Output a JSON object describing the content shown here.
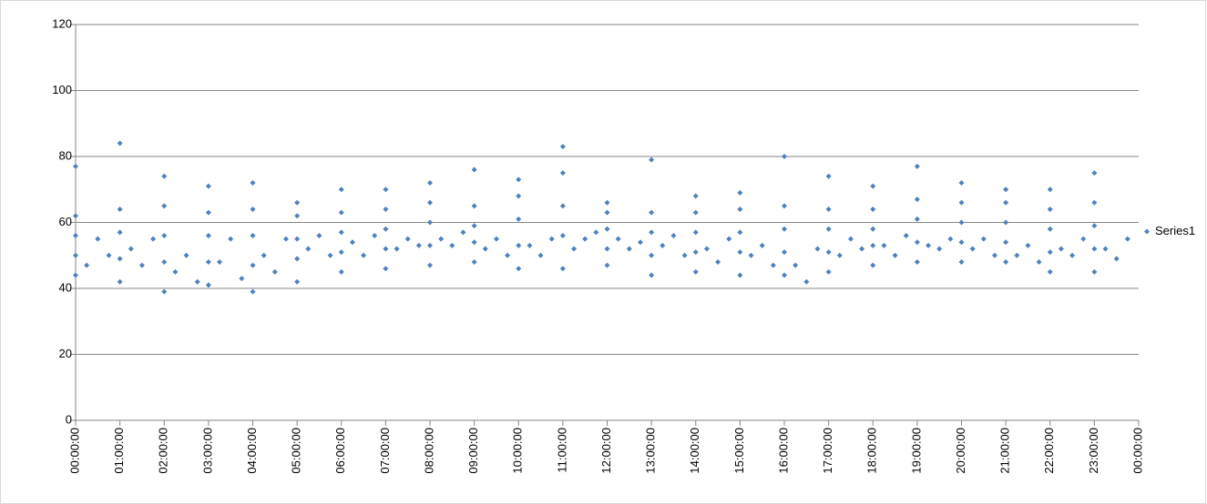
{
  "chart_data": {
    "type": "scatter",
    "x": [
      0,
      0,
      0,
      0,
      0,
      0.25,
      0.5,
      0.75,
      1,
      1,
      1,
      1,
      1,
      1.25,
      1.5,
      1.75,
      2,
      2,
      2,
      2,
      2,
      2.25,
      2.5,
      2.75,
      3,
      3,
      3,
      3,
      3,
      3.25,
      3.5,
      3.75,
      4,
      4,
      4,
      4,
      4,
      4.25,
      4.5,
      4.75,
      5,
      5,
      5,
      5,
      5,
      5.25,
      5.5,
      5.75,
      6,
      6,
      6,
      6,
      6,
      6.25,
      6.5,
      6.75,
      7,
      7,
      7,
      7,
      7,
      7.25,
      7.5,
      7.75,
      8,
      8,
      8,
      8,
      8,
      8.25,
      8.5,
      8.75,
      9,
      9,
      9,
      9,
      9,
      9.25,
      9.5,
      9.75,
      10,
      10,
      10,
      10,
      10,
      10.25,
      10.5,
      10.75,
      11,
      11,
      11,
      11,
      11,
      11.25,
      11.5,
      11.75,
      12,
      12,
      12,
      12,
      12,
      12.25,
      12.5,
      12.75,
      13,
      13,
      13,
      13,
      13,
      13.25,
      13.5,
      13.75,
      14,
      14,
      14,
      14,
      14,
      14.25,
      14.5,
      14.75,
      15,
      15,
      15,
      15,
      15,
      15.25,
      15.5,
      15.75,
      16,
      16,
      16,
      16,
      16,
      16.25,
      16.5,
      16.75,
      17,
      17,
      17,
      17,
      17,
      17.25,
      17.5,
      17.75,
      18,
      18,
      18,
      18,
      18,
      18.25,
      18.5,
      18.75,
      19,
      19,
      19,
      19,
      19,
      19.25,
      19.5,
      19.75,
      20,
      20,
      20,
      20,
      20,
      20.25,
      20.5,
      20.75,
      21,
      21,
      21,
      21,
      21,
      21.25,
      21.5,
      21.75,
      22,
      22,
      22,
      22,
      22,
      22.25,
      22.5,
      22.75,
      23,
      23,
      23,
      23,
      23,
      23.25,
      23.5,
      23.75
    ],
    "series": [
      {
        "name": "Series1",
        "color": "#4f81bd",
        "values": [
          44,
          50,
          56,
          62,
          77,
          47,
          55,
          50,
          42,
          49,
          57,
          64,
          84,
          52,
          47,
          55,
          39,
          48,
          56,
          65,
          74,
          45,
          50,
          42,
          41,
          48,
          56,
          63,
          71,
          48,
          55,
          43,
          39,
          47,
          56,
          64,
          72,
          50,
          45,
          55,
          42,
          49,
          55,
          62,
          66,
          52,
          56,
          50,
          45,
          51,
          57,
          63,
          70,
          54,
          50,
          56,
          46,
          52,
          58,
          64,
          70,
          52,
          55,
          53,
          47,
          53,
          60,
          66,
          72,
          55,
          53,
          57,
          48,
          54,
          59,
          65,
          76,
          52,
          55,
          50,
          46,
          53,
          61,
          68,
          73,
          53,
          50,
          55,
          46,
          56,
          65,
          75,
          83,
          52,
          55,
          57,
          47,
          52,
          58,
          63,
          66,
          55,
          52,
          54,
          44,
          50,
          57,
          63,
          79,
          53,
          56,
          50,
          45,
          51,
          57,
          63,
          68,
          52,
          48,
          55,
          44,
          51,
          57,
          64,
          69,
          50,
          53,
          47,
          44,
          51,
          58,
          65,
          80,
          47,
          42,
          52,
          45,
          51,
          58,
          64,
          74,
          50,
          55,
          52,
          47,
          53,
          58,
          64,
          71,
          53,
          50,
          56,
          48,
          54,
          61,
          67,
          77,
          53,
          52,
          55,
          48,
          54,
          60,
          66,
          72,
          52,
          55,
          50,
          48,
          54,
          60,
          66,
          70,
          50,
          53,
          48,
          45,
          51,
          58,
          64,
          70,
          52,
          50,
          55,
          45,
          52,
          59,
          66,
          75,
          52,
          49,
          55
        ]
      }
    ],
    "xlim": [
      0,
      24
    ],
    "xticks": [
      {
        "value": 0,
        "label": "00:00:00"
      },
      {
        "value": 1,
        "label": "01:00:00"
      },
      {
        "value": 2,
        "label": "02:00:00"
      },
      {
        "value": 3,
        "label": "03:00:00"
      },
      {
        "value": 4,
        "label": "04:00:00"
      },
      {
        "value": 5,
        "label": "05:00:00"
      },
      {
        "value": 6,
        "label": "06:00:00"
      },
      {
        "value": 7,
        "label": "07:00:00"
      },
      {
        "value": 8,
        "label": "08:00:00"
      },
      {
        "value": 9,
        "label": "09:00:00"
      },
      {
        "value": 10,
        "label": "10:00:00"
      },
      {
        "value": 11,
        "label": "11:00:00"
      },
      {
        "value": 12,
        "label": "12:00:00"
      },
      {
        "value": 13,
        "label": "13:00:00"
      },
      {
        "value": 14,
        "label": "14:00:00"
      },
      {
        "value": 15,
        "label": "15:00:00"
      },
      {
        "value": 16,
        "label": "16:00:00"
      },
      {
        "value": 17,
        "label": "17:00:00"
      },
      {
        "value": 18,
        "label": "18:00:00"
      },
      {
        "value": 19,
        "label": "19:00:00"
      },
      {
        "value": 20,
        "label": "20:00:00"
      },
      {
        "value": 21,
        "label": "21:00:00"
      },
      {
        "value": 22,
        "label": "22:00:00"
      },
      {
        "value": 23,
        "label": "23:00:00"
      },
      {
        "value": 24,
        "label": "00:00:00"
      }
    ],
    "ylim": [
      0,
      120
    ],
    "yticks": [
      0,
      20,
      40,
      60,
      80,
      100,
      120
    ],
    "grid": true,
    "legend": "right"
  }
}
